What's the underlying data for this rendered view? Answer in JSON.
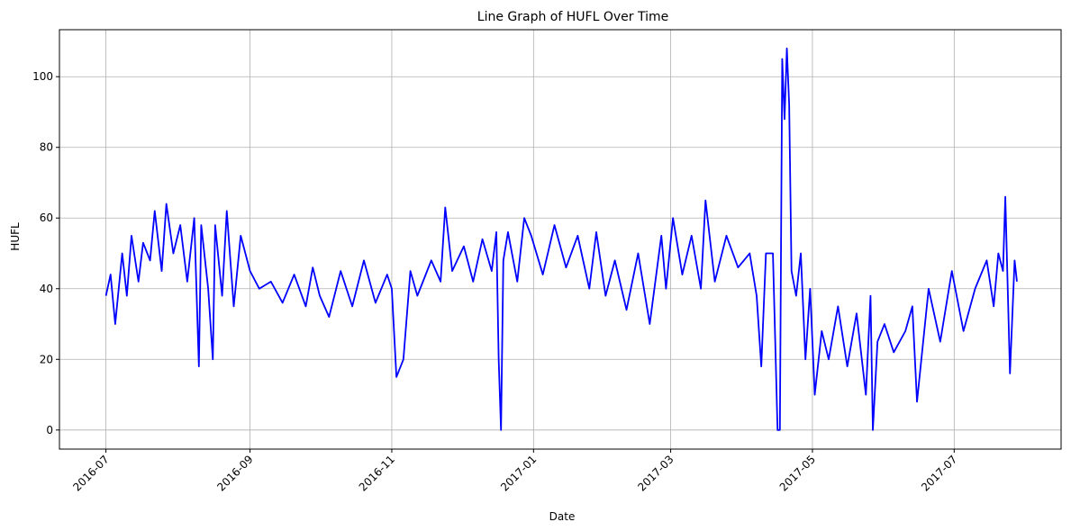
{
  "chart_data": {
    "type": "line",
    "title": "Line Graph of HUFL Over Time",
    "xlabel": "Date",
    "ylabel": "HUFL",
    "x_type": "date",
    "xlim": [
      "2016-06-11",
      "2017-08-16"
    ],
    "ylim": [
      -5.4,
      113.3
    ],
    "grid": true,
    "x_ticks": [
      "2016-07-01",
      "2016-09-01",
      "2016-11-01",
      "2017-01-01",
      "2017-03-01",
      "2017-05-01",
      "2017-07-01"
    ],
    "x_tick_labels": [
      "2016-07",
      "2016-09",
      "2016-11",
      "2017-01",
      "2017-03",
      "2017-05",
      "2017-07"
    ],
    "y_ticks": [
      0,
      20,
      40,
      60,
      80,
      100
    ],
    "y_tick_labels": [
      "0",
      "20",
      "40",
      "60",
      "80",
      "100"
    ],
    "series": [
      {
        "color": "#0000ff",
        "x": [
          "2016-07-01",
          "2016-07-03",
          "2016-07-05",
          "2016-07-08",
          "2016-07-10",
          "2016-07-12",
          "2016-07-15",
          "2016-07-17",
          "2016-07-20",
          "2016-07-22",
          "2016-07-25",
          "2016-07-27",
          "2016-07-30",
          "2016-08-02",
          "2016-08-05",
          "2016-08-08",
          "2016-08-10",
          "2016-08-11",
          "2016-08-14",
          "2016-08-16",
          "2016-08-17",
          "2016-08-20",
          "2016-08-22",
          "2016-08-25",
          "2016-08-28",
          "2016-09-01",
          "2016-09-05",
          "2016-09-10",
          "2016-09-15",
          "2016-09-20",
          "2016-09-25",
          "2016-09-28",
          "2016-10-01",
          "2016-10-05",
          "2016-10-10",
          "2016-10-15",
          "2016-10-20",
          "2016-10-25",
          "2016-10-30",
          "2016-11-01",
          "2016-11-03",
          "2016-11-06",
          "2016-11-09",
          "2016-11-12",
          "2016-11-18",
          "2016-11-22",
          "2016-11-24",
          "2016-11-27",
          "2016-12-02",
          "2016-12-06",
          "2016-12-10",
          "2016-12-14",
          "2016-12-16",
          "2016-12-17",
          "2016-12-18",
          "2016-12-19",
          "2016-12-21",
          "2016-12-25",
          "2016-12-28",
          "2016-12-31",
          "2017-01-05",
          "2017-01-10",
          "2017-01-15",
          "2017-01-20",
          "2017-01-25",
          "2017-01-28",
          "2017-02-01",
          "2017-02-05",
          "2017-02-10",
          "2017-02-15",
          "2017-02-20",
          "2017-02-25",
          "2017-02-27",
          "2017-03-02",
          "2017-03-06",
          "2017-03-10",
          "2017-03-14",
          "2017-03-16",
          "2017-03-20",
          "2017-03-25",
          "2017-03-30",
          "2017-04-04",
          "2017-04-07",
          "2017-04-09",
          "2017-04-11",
          "2017-04-12",
          "2017-04-14",
          "2017-04-16",
          "2017-04-17",
          "2017-04-18",
          "2017-04-19",
          "2017-04-20",
          "2017-04-21",
          "2017-04-22",
          "2017-04-24",
          "2017-04-26",
          "2017-04-28",
          "2017-04-30",
          "2017-05-02",
          "2017-05-05",
          "2017-05-08",
          "2017-05-12",
          "2017-05-16",
          "2017-05-20",
          "2017-05-24",
          "2017-05-26",
          "2017-05-27",
          "2017-05-29",
          "2017-06-01",
          "2017-06-05",
          "2017-06-10",
          "2017-06-13",
          "2017-06-15",
          "2017-06-20",
          "2017-06-25",
          "2017-06-30",
          "2017-07-05",
          "2017-07-10",
          "2017-07-15",
          "2017-07-18",
          "2017-07-20",
          "2017-07-22",
          "2017-07-23",
          "2017-07-25",
          "2017-07-27",
          "2017-07-28"
        ],
        "y": [
          38,
          44,
          30,
          50,
          38,
          55,
          42,
          53,
          48,
          62,
          45,
          64,
          50,
          58,
          42,
          60,
          18,
          58,
          40,
          20,
          58,
          38,
          62,
          35,
          55,
          45,
          40,
          42,
          36,
          44,
          35,
          46,
          38,
          32,
          45,
          35,
          48,
          36,
          44,
          40,
          15,
          20,
          45,
          38,
          48,
          42,
          63,
          45,
          52,
          42,
          54,
          45,
          56,
          20,
          0,
          48,
          56,
          42,
          60,
          55,
          44,
          58,
          46,
          55,
          40,
          56,
          38,
          48,
          34,
          50,
          30,
          55,
          40,
          60,
          44,
          55,
          40,
          65,
          42,
          55,
          46,
          50,
          38,
          18,
          50,
          50,
          50,
          0,
          0,
          105,
          88,
          108,
          92,
          45,
          38,
          50,
          20,
          40,
          10,
          28,
          20,
          35,
          18,
          33,
          10,
          38,
          0,
          25,
          30,
          22,
          28,
          35,
          8,
          40,
          25,
          45,
          28,
          40,
          48,
          35,
          50,
          45,
          66,
          16,
          48,
          42
        ]
      }
    ]
  }
}
